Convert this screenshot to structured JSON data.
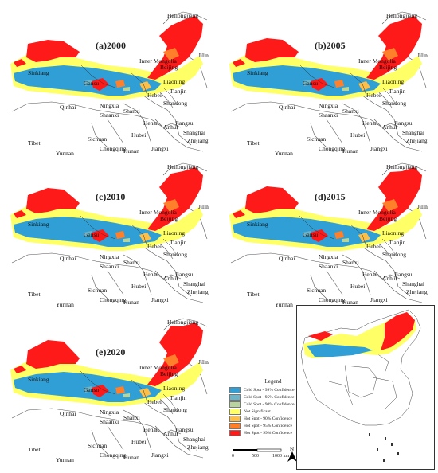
{
  "colors": {
    "cold99": "#2f9fd6",
    "cold95": "#6fb3c7",
    "cold90": "#b7d59a",
    "ns": "#ffff66",
    "hot90": "#ffbf47",
    "hot95": "#ff7f2a",
    "hot99": "#ff1a1a"
  },
  "panels": [
    {
      "label": "(a)2000"
    },
    {
      "label": "(b)2005"
    },
    {
      "label": "(c)2010"
    },
    {
      "label": "(d)2015"
    },
    {
      "label": "(e)2020"
    }
  ],
  "places": {
    "heilongjiang": "Heilongjiang",
    "jilin": "Jilin",
    "inner_mongolia": "Inner Mongolia",
    "sinkiang": "Sinkiang",
    "gansu": "Gansu",
    "ningxia": "Ningxia",
    "liaoning": "Liaoning",
    "hebei": "Hebei",
    "tianjin": "Tianjin",
    "shanxi": "Shanxi",
    "shandong": "Shandong",
    "qinhai": "Qinhai",
    "tibet": "Tibet",
    "sichuan": "Sichuan",
    "henan": "Henan",
    "hubei": "Hubei",
    "anhui": "Anhui",
    "jiangsu": "Jiangsu",
    "shanghai": "Shanghai",
    "zhejiang": "Zhejiang",
    "yunnan": "Yunnan",
    "hunan": "Hunan",
    "jiangxi": "Jiangxi",
    "chongqing": "Chongqing",
    "beijing": "Beijing",
    "shaanxi": "Shaanxi"
  },
  "legend": {
    "title": "Legend",
    "items": [
      {
        "label": "Cold Spot - 99% Confidence",
        "color": "#2f9fd6"
      },
      {
        "label": "Cold Spot - 95% Confidence",
        "color": "#6fb3c7"
      },
      {
        "label": "Cold Spot - 90% Confidence",
        "color": "#b7d59a"
      },
      {
        "label": "Not Significant",
        "color": "#ffff66"
      },
      {
        "label": "Hot Spot - 90% Confidence",
        "color": "#ffbf47"
      },
      {
        "label": "Hot Spot - 95% Confidence",
        "color": "#ff7f2a"
      },
      {
        "label": "Hot Spot - 99% Confidence",
        "color": "#ff1a1a"
      }
    ]
  },
  "scale": {
    "t0": "0",
    "t1": "500",
    "t2": "1000 km"
  },
  "north": "N"
}
